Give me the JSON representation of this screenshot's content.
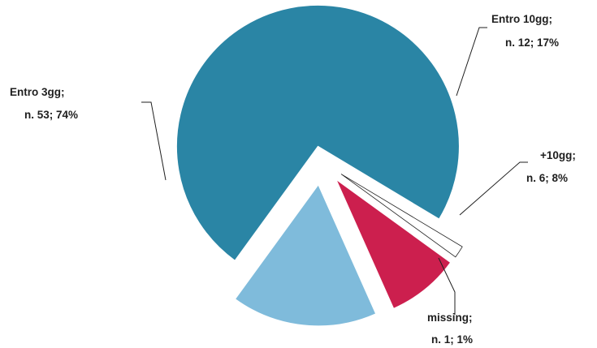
{
  "chart_data": {
    "type": "pie",
    "title": "",
    "slices": [
      {
        "category": "Entro 3gg",
        "count": 53,
        "percent": 74,
        "color": "#2a85a5",
        "label_line1": "Entro 3gg;",
        "label_line2": "n. 53; 74%"
      },
      {
        "category": "Entro 10gg",
        "count": 12,
        "percent": 17,
        "color": "#7fbbdb",
        "label_line1": "Entro 10gg;",
        "label_line2": "n. 12; 17%"
      },
      {
        "category": "+10gg",
        "count": 6,
        "percent": 8,
        "color": "#cc1f4e",
        "label_line1": "+10gg;",
        "label_line2": "n. 6; 8%"
      },
      {
        "category": "missing",
        "count": 1,
        "percent": 1,
        "color": "#ffffff",
        "label_line1": "missing;",
        "label_line2": "n. 1; 1%"
      }
    ],
    "exploded": true,
    "legend": "none"
  }
}
